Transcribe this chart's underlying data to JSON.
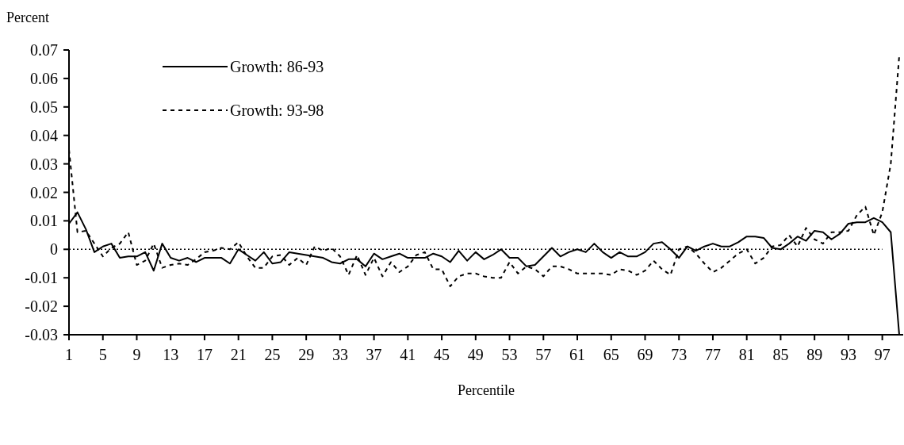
{
  "chart_data": {
    "type": "line",
    "xlabel": "Percentile",
    "ylabel": "Percent",
    "categories": [
      "1",
      null,
      null,
      null,
      "5",
      null,
      null,
      null,
      "9",
      null,
      null,
      null,
      "13",
      null,
      null,
      null,
      "17",
      null,
      null,
      null,
      "21",
      null,
      null,
      null,
      "25",
      null,
      null,
      null,
      "29",
      null,
      null,
      null,
      "33",
      null,
      null,
      null,
      "37",
      null,
      null,
      null,
      "41",
      null,
      null,
      null,
      "45",
      null,
      null,
      null,
      "49",
      null,
      null,
      null,
      "53",
      null,
      null,
      null,
      "57",
      null,
      null,
      null,
      "61",
      null,
      null,
      null,
      "65",
      null,
      null,
      null,
      "69",
      null,
      null,
      null,
      "73",
      null,
      null,
      null,
      "77",
      null,
      null,
      null,
      "81",
      null,
      null,
      null,
      "85",
      null,
      null,
      null,
      "89",
      null,
      null,
      null,
      "93",
      null,
      null,
      null,
      "97",
      null,
      null
    ],
    "series": [
      {
        "name": "Growth: 86-93",
        "color": "#000000",
        "line_style": "solid",
        "values": [
          0.009,
          0.013,
          0.007,
          -0.001,
          0.001,
          0.002,
          -0.003,
          -0.0025,
          -0.0025,
          -0.001,
          -0.0075,
          0.002,
          -0.003,
          -0.004,
          -0.003,
          -0.0045,
          -0.003,
          -0.003,
          -0.003,
          -0.005,
          0,
          -0.002,
          -0.004,
          -0.001,
          -0.005,
          -0.0045,
          -0.001,
          -0.0015,
          -0.002,
          -0.0025,
          -0.003,
          -0.0045,
          -0.005,
          -0.0035,
          -0.0035,
          -0.006,
          -0.0015,
          -0.0035,
          -0.0025,
          -0.0015,
          -0.003,
          -0.003,
          -0.003,
          -0.0015,
          -0.0025,
          -0.0045,
          -0.0005,
          -0.004,
          -0.001,
          -0.0035,
          -0.002,
          0,
          -0.003,
          -0.003,
          -0.006,
          -0.0055,
          -0.0025,
          0.0005,
          -0.0025,
          -0.001,
          0,
          -0.001,
          0.002,
          -0.001,
          -0.003,
          -0.001,
          -0.0025,
          -0.0025,
          -0.001,
          0.002,
          0.0025,
          0,
          -0.003,
          0.001,
          -0.0005,
          0.001,
          0.002,
          0.001,
          0.001,
          0.0025,
          0.0045,
          0.0045,
          0.004,
          0.0005,
          0,
          0.002,
          0.0045,
          0.003,
          0.0065,
          0.006,
          0.0035,
          0.0055,
          0.009,
          0.0095,
          0.0095,
          0.011,
          0.0095,
          0.006,
          -0.03
        ]
      },
      {
        "name": "Growth: 93-98",
        "color": "#000000",
        "line_style": "dashed",
        "values": [
          0.035,
          0.006,
          0.0065,
          0.002,
          -0.0025,
          0.0005,
          0.002,
          0.006,
          -0.0055,
          -0.004,
          0.002,
          -0.0065,
          -0.0055,
          -0.005,
          -0.0055,
          -0.0035,
          -0.001,
          -0.0005,
          0.0005,
          0,
          0.0025,
          -0.0025,
          -0.0065,
          -0.0065,
          -0.0025,
          -0.002,
          -0.0055,
          -0.003,
          -0.0055,
          0.001,
          -0.0005,
          0.0005,
          -0.0025,
          -0.009,
          -0.002,
          -0.009,
          -0.003,
          -0.0095,
          -0.0045,
          -0.008,
          -0.006,
          -0.002,
          -0.001,
          -0.007,
          -0.007,
          -0.013,
          -0.0095,
          -0.0085,
          -0.0085,
          -0.0095,
          -0.01,
          -0.01,
          -0.0045,
          -0.0085,
          -0.006,
          -0.007,
          -0.0095,
          -0.006,
          -0.006,
          -0.007,
          -0.0085,
          -0.0085,
          -0.0085,
          -0.0085,
          -0.009,
          -0.007,
          -0.0075,
          -0.009,
          -0.0075,
          -0.004,
          -0.007,
          -0.009,
          0,
          0.001,
          -0.0015,
          -0.005,
          -0.008,
          -0.0065,
          -0.004,
          -0.0015,
          0,
          -0.005,
          -0.003,
          0.001,
          0.0015,
          0.005,
          0.001,
          0.0075,
          0.0035,
          0.002,
          0.006,
          0.006,
          0.0065,
          0.012,
          0.015,
          0.005,
          0.013,
          0.03,
          0.068
        ]
      }
    ],
    "ylim": [
      -0.03,
      0.07
    ],
    "yticks": [
      -0.03,
      -0.02,
      -0.01,
      0,
      0.01,
      0.02,
      0.03,
      0.04,
      0.05,
      0.06,
      0.07
    ],
    "ref_lines": [
      {
        "axis": "y",
        "value": 0,
        "line_style": "dotted"
      }
    ],
    "grid": false,
    "legend": "top left",
    "marker": "none"
  }
}
